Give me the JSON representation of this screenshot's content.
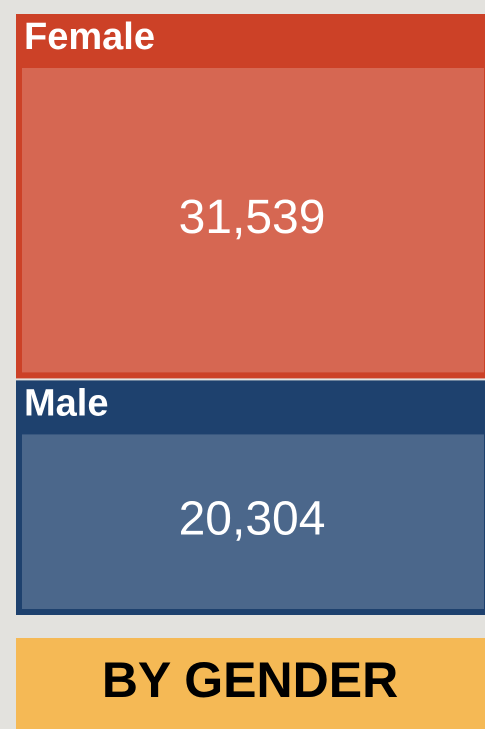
{
  "chart_data": {
    "type": "treemap",
    "title": "BY GENDER",
    "categories": [
      "Female",
      "Male"
    ],
    "values": [
      31539,
      20304
    ],
    "value_labels": [
      "31,539",
      "20,304"
    ],
    "colors": [
      "#cc4127",
      "#1e416e"
    ]
  }
}
